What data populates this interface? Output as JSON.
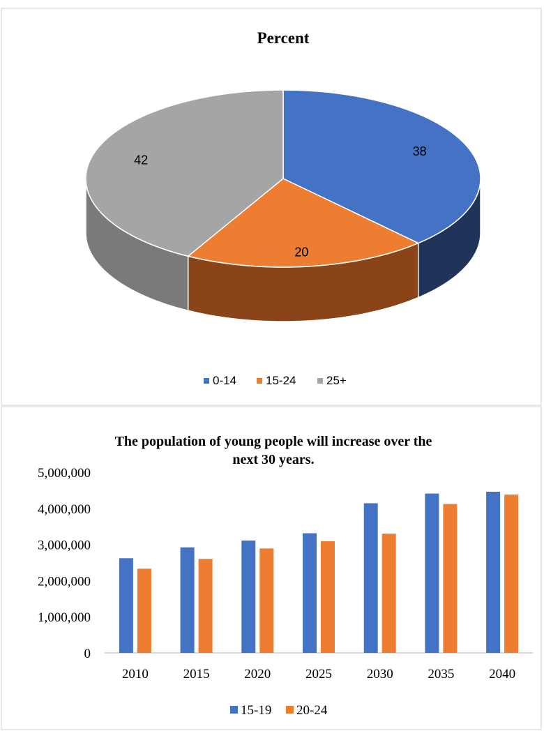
{
  "colors": {
    "blue": "#4472c4",
    "orange": "#ed7d31",
    "gray": "#a5a5a5",
    "blue_side": "#1f3458",
    "orange_side": "#8a4418",
    "gray_side": "#7a7a7a",
    "border": "#d9d9d9",
    "text": "#000000",
    "axis": "#bfbfbf"
  },
  "chart_data": [
    {
      "type": "pie",
      "style": "3d",
      "title": "Percent",
      "categories": [
        "0-14",
        "15-24",
        "25+"
      ],
      "values": [
        38,
        20,
        42
      ],
      "data_labels": [
        "38",
        "20",
        "42"
      ],
      "legend": {
        "placement": "bottom",
        "items": [
          "0-14",
          "15-24",
          "25+"
        ]
      }
    },
    {
      "type": "bar",
      "title": "The population of young people will increase over the next 30 years.",
      "title_lines": [
        "The population of young people will increase over the",
        "next 30 years."
      ],
      "categories": [
        "2010",
        "2015",
        "2020",
        "2025",
        "2030",
        "2035",
        "2040"
      ],
      "series": [
        {
          "name": "15-19",
          "values": [
            2620000,
            2920000,
            3110000,
            3310000,
            4140000,
            4410000,
            4460000
          ]
        },
        {
          "name": "20-24",
          "values": [
            2330000,
            2600000,
            2890000,
            3090000,
            3300000,
            4120000,
            4380000
          ]
        }
      ],
      "ylim": [
        0,
        5000000
      ],
      "yticks": [
        "0",
        "1,000,000",
        "2,000,000",
        "3,000,000",
        "4,000,000",
        "5,000,000"
      ],
      "grid": false,
      "legend": {
        "placement": "bottom",
        "items": [
          "15-19",
          "20-24"
        ]
      }
    }
  ]
}
